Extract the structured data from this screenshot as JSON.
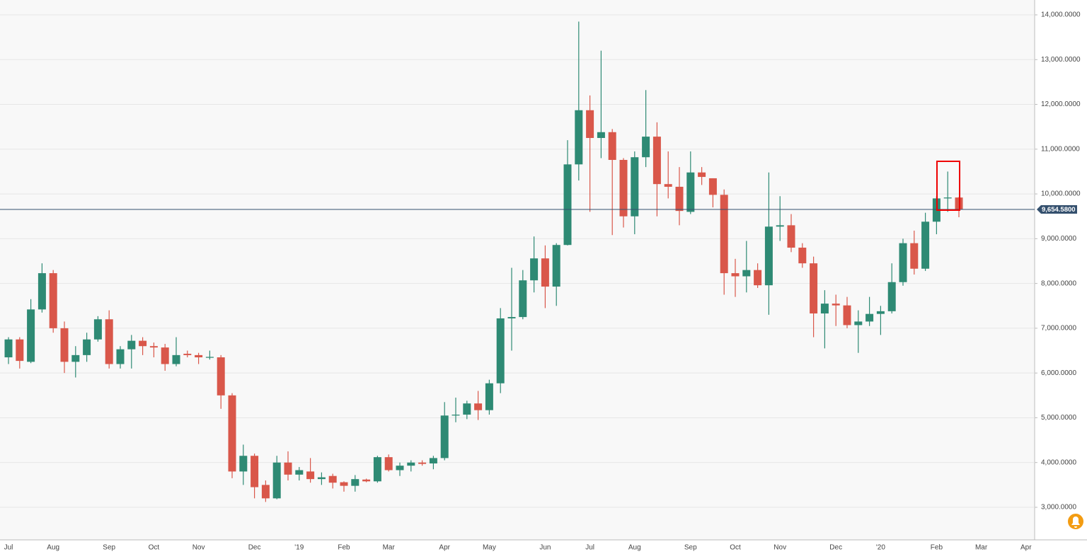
{
  "chart_data": {
    "type": "candlestick",
    "categories": [
      "Jul",
      null,
      null,
      null,
      "Aug",
      null,
      null,
      null,
      null,
      "Sep",
      null,
      null,
      null,
      "Oct",
      null,
      null,
      null,
      "Nov",
      null,
      null,
      null,
      null,
      "Dec",
      null,
      null,
      null,
      "'19",
      null,
      null,
      null,
      "Feb",
      null,
      null,
      null,
      "Mar",
      null,
      null,
      null,
      null,
      "Apr",
      null,
      null,
      null,
      "May",
      null,
      null,
      null,
      null,
      "Jun",
      null,
      null,
      null,
      "Jul",
      null,
      null,
      null,
      "Aug",
      null,
      null,
      null,
      null,
      "Sep",
      null,
      null,
      null,
      "Oct",
      null,
      null,
      null,
      "Nov",
      null,
      null,
      null,
      null,
      "Dec",
      null,
      null,
      null,
      "'20",
      null,
      null,
      null,
      null,
      "Feb",
      null,
      null,
      null,
      "Mar",
      null,
      null,
      null,
      "Apr"
    ],
    "open": [
      6350,
      6750,
      6250,
      7420,
      8230,
      7000,
      6250,
      6400,
      6750,
      7200,
      6200,
      6530,
      6720,
      6600,
      6570,
      6200,
      6430,
      6400,
      6340,
      6350,
      5500,
      3800,
      4150,
      3500,
      3200,
      4000,
      3730,
      3800,
      3630,
      3700,
      3560,
      3480,
      3620,
      3580,
      4120,
      3830,
      3930,
      4000,
      3980,
      4100,
      5050,
      5070,
      5320,
      5170,
      5770,
      7220,
      7250,
      8070,
      8560,
      7930,
      8860,
      10660,
      11870,
      11250,
      11380,
      10760,
      9500,
      10820,
      11280,
      10220,
      10160,
      9600,
      10480,
      10350,
      9980,
      8230,
      8160,
      8300,
      7960,
      9270,
      9300,
      8800,
      8450,
      7330,
      7550,
      7510,
      7070,
      7150,
      7320,
      7380,
      8030,
      8900,
      8330,
      9380,
      9900,
      9920,
      null,
      null,
      null,
      null,
      null,
      null
    ],
    "high": [
      6800,
      6800,
      7650,
      8450,
      8300,
      7150,
      6600,
      6900,
      7270,
      7400,
      6600,
      6850,
      6800,
      6680,
      6650,
      6800,
      6500,
      6450,
      6500,
      6400,
      5550,
      4400,
      4200,
      3600,
      4150,
      4250,
      3900,
      4100,
      3780,
      3750,
      3580,
      3720,
      3640,
      4150,
      4180,
      4000,
      4050,
      4050,
      4150,
      5350,
      5450,
      5380,
      5600,
      5850,
      7450,
      8350,
      8300,
      9050,
      8850,
      8900,
      11200,
      13850,
      12200,
      13200,
      11450,
      10800,
      10950,
      12320,
      11600,
      10950,
      10600,
      10950,
      10600,
      10350,
      10100,
      8550,
      8950,
      8450,
      10480,
      9950,
      9550,
      8900,
      8600,
      7850,
      7750,
      7700,
      7400,
      7700,
      7500,
      8450,
      9000,
      9180,
      9580,
      9950,
      10500,
      9930,
      null,
      null,
      null,
      null,
      null,
      null
    ],
    "low": [
      6200,
      6100,
      6220,
      7350,
      6900,
      6000,
      5900,
      6250,
      6700,
      6100,
      6100,
      6100,
      6400,
      6350,
      6050,
      6150,
      6350,
      6200,
      6300,
      5200,
      3650,
      3500,
      3200,
      3120,
      3180,
      3600,
      3600,
      3550,
      3500,
      3420,
      3350,
      3350,
      3560,
      3550,
      3800,
      3700,
      3800,
      3930,
      3850,
      4050,
      4900,
      4970,
      4950,
      5070,
      5550,
      6500,
      7200,
      7800,
      7450,
      7500,
      8850,
      10300,
      9600,
      10800,
      9080,
      9250,
      9100,
      10600,
      9500,
      9900,
      9300,
      9550,
      10200,
      9700,
      7750,
      7700,
      7800,
      7900,
      7300,
      8950,
      8700,
      8350,
      6800,
      6550,
      7050,
      7000,
      6450,
      7050,
      6850,
      7330,
      7950,
      8200,
      8280,
      9100,
      9600,
      9480,
      null,
      null,
      null,
      null,
      null,
      null
    ],
    "close": [
      6750,
      6270,
      7420,
      8230,
      7000,
      6250,
      6400,
      6750,
      7200,
      6200,
      6530,
      6720,
      6600,
      6570,
      6200,
      6400,
      6400,
      6350,
      6360,
      5500,
      3800,
      4150,
      3450,
      3200,
      4000,
      3730,
      3830,
      3630,
      3670,
      3550,
      3480,
      3630,
      3580,
      4120,
      3830,
      3930,
      4000,
      3970,
      4100,
      5050,
      5070,
      5320,
      5170,
      5770,
      7220,
      7250,
      8070,
      8560,
      7930,
      8860,
      10660,
      11870,
      11250,
      11380,
      10760,
      9500,
      10820,
      11280,
      10220,
      10160,
      9620,
      10480,
      10380,
      9980,
      8230,
      8160,
      8300,
      7960,
      9270,
      9300,
      8800,
      8450,
      7330,
      7550,
      7510,
      7070,
      7150,
      7320,
      7380,
      8030,
      8900,
      8330,
      9380,
      9900,
      9920,
      9650,
      null,
      null,
      null,
      null,
      null,
      null
    ],
    "up_color": "#2e8a74",
    "down_color": "#d9574a",
    "ylim": [
      2273,
      14332
    ],
    "yticks": [
      {
        "value": 3000,
        "label": "3,000.0000"
      },
      {
        "value": 4000,
        "label": "4,000.0000"
      },
      {
        "value": 5000,
        "label": "5,000.0000"
      },
      {
        "value": 6000,
        "label": "6,000.0000"
      },
      {
        "value": 7000,
        "label": "7,000.0000"
      },
      {
        "value": 8000,
        "label": "8,000.0000"
      },
      {
        "value": 9000,
        "label": "9,000.0000"
      },
      {
        "value": 10000,
        "label": "10,000.0000"
      },
      {
        "value": 11000,
        "label": "11,000.0000"
      },
      {
        "value": 12000,
        "label": "12,000.0000"
      },
      {
        "value": 13000,
        "label": "13,000.0000"
      },
      {
        "value": 14000,
        "label": "14,000.0000"
      }
    ],
    "grid": true,
    "last_price": {
      "value": 9654.58,
      "label": "9,654.5800",
      "color": "#34506e"
    }
  }
}
